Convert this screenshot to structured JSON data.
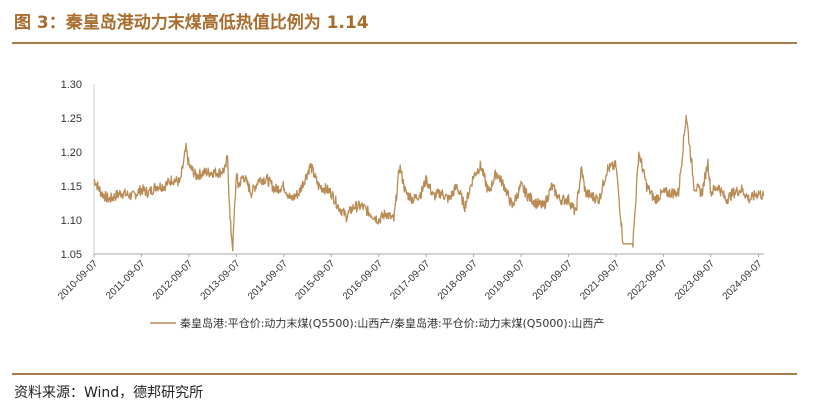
{
  "header": {
    "title": "图 3：秦皇岛港动力末煤高低热值比例为 1.14"
  },
  "footer": {
    "source": "资料来源：Wind，德邦研究所"
  },
  "colors": {
    "accent": "#a86c2e",
    "line": "#b98b55",
    "rule": "#a87a4e"
  },
  "chart_data": {
    "type": "line",
    "title": "",
    "xlabel": "",
    "ylabel": "",
    "ylim": [
      1.05,
      1.3
    ],
    "yticks": [
      "1.05",
      "1.10",
      "1.15",
      "1.20",
      "1.25",
      "1.30"
    ],
    "xticks": [
      "2010-09-07",
      "2011-09-07",
      "2012-09-07",
      "2013-09-07",
      "2014-09-07",
      "2015-09-07",
      "2016-09-07",
      "2017-09-07",
      "2018-09-07",
      "2019-09-07",
      "2020-09-07",
      "2021-09-07",
      "2022-09-07",
      "2023-09-07",
      "2024-09-07"
    ],
    "grid": false,
    "legend_position": "bottom",
    "series": [
      {
        "name": "秦皇岛港:平仓价:动力末煤(Q5500):山西产/秦皇岛港:平仓价:动力末煤(Q5000):山西产",
        "x": [
          "2010-09-07",
          "2010-11-01",
          "2011-01-01",
          "2011-04-01",
          "2011-07-01",
          "2011-09-07",
          "2011-11-01",
          "2012-01-01",
          "2012-03-01",
          "2012-05-01",
          "2012-07-01",
          "2012-08-15",
          "2012-09-07",
          "2012-11-01",
          "2013-01-01",
          "2013-03-01",
          "2013-05-01",
          "2013-06-15",
          "2013-07-01",
          "2013-07-20",
          "2013-08-10",
          "2013-09-07",
          "2013-09-20",
          "2013-11-01",
          "2014-01-01",
          "2014-03-01",
          "2014-05-01",
          "2014-07-01",
          "2014-09-07",
          "2014-11-01",
          "2015-01-01",
          "2015-02-15",
          "2015-04-01",
          "2015-06-01",
          "2015-08-01",
          "2015-09-07",
          "2015-11-01",
          "2016-01-01",
          "2016-03-01",
          "2016-05-01",
          "2016-07-01",
          "2016-09-07",
          "2016-11-01",
          "2017-01-01",
          "2017-02-15",
          "2017-04-01",
          "2017-06-01",
          "2017-08-01",
          "2017-09-07",
          "2017-11-01",
          "2018-01-01",
          "2018-03-01",
          "2018-05-01",
          "2018-07-01",
          "2018-09-07",
          "2018-11-01",
          "2019-01-01",
          "2019-03-01",
          "2019-05-01",
          "2019-07-01",
          "2019-09-07",
          "2019-11-01",
          "2020-01-01",
          "2020-03-01",
          "2020-05-01",
          "2020-07-01",
          "2020-09-07",
          "2020-11-01",
          "2020-12-15",
          "2021-01-15",
          "2021-03-01",
          "2021-05-01",
          "2021-07-01",
          "2021-09-07",
          "2021-10-01",
          "2021-11-01",
          "2021-12-15",
          "2022-01-15",
          "2022-03-01",
          "2022-05-01",
          "2022-07-01",
          "2022-09-07",
          "2022-11-01",
          "2023-01-01",
          "2023-03-01",
          "2023-05-01",
          "2023-07-01",
          "2023-08-15",
          "2023-09-07",
          "2023-11-01",
          "2024-01-01",
          "2024-03-01",
          "2024-05-01",
          "2024-07-01",
          "2024-09-07",
          "2024-10-15"
        ],
        "values": [
          1.16,
          1.14,
          1.13,
          1.14,
          1.135,
          1.145,
          1.14,
          1.15,
          1.15,
          1.16,
          1.155,
          1.205,
          1.18,
          1.165,
          1.17,
          1.17,
          1.17,
          1.175,
          1.195,
          1.1,
          1.06,
          1.17,
          1.15,
          1.165,
          1.14,
          1.16,
          1.16,
          1.145,
          1.15,
          1.13,
          1.14,
          1.16,
          1.18,
          1.15,
          1.145,
          1.14,
          1.12,
          1.105,
          1.12,
          1.12,
          1.11,
          1.1,
          1.11,
          1.1,
          1.18,
          1.14,
          1.13,
          1.14,
          1.16,
          1.135,
          1.14,
          1.13,
          1.15,
          1.12,
          1.165,
          1.18,
          1.14,
          1.17,
          1.15,
          1.12,
          1.15,
          1.135,
          1.125,
          1.12,
          1.15,
          1.13,
          1.13,
          1.11,
          1.175,
          1.14,
          1.135,
          1.13,
          1.175,
          1.18,
          1.13,
          1.065,
          1.065,
          1.065,
          1.2,
          1.15,
          1.13,
          1.14,
          1.14,
          1.14,
          1.255,
          1.15,
          1.14,
          1.185,
          1.14,
          1.15,
          1.13,
          1.14,
          1.145,
          1.13,
          1.14,
          1.135
        ]
      }
    ]
  }
}
